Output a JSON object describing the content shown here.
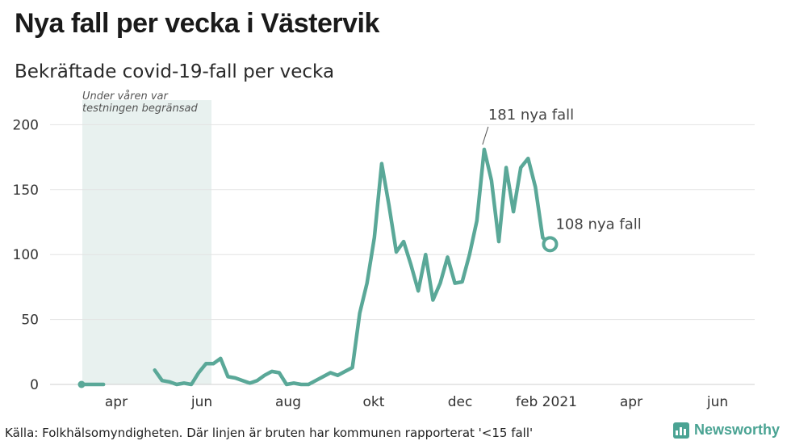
{
  "header": {
    "title": "Nya fall per vecka i Västervik",
    "subtitle": "Bekräftade covid-19-fall per vecka"
  },
  "footer": {
    "source": "Källa: Folkhälsomyndigheten. Där linjen är bruten har kommunen rapporterat '<15 fall'",
    "brand": "Newsworthy"
  },
  "colors": {
    "line": "#5aa898",
    "shade": "#e8f1ef",
    "grid": "#e3e3e3",
    "brand": "#4aa393"
  },
  "chart_data": {
    "type": "line",
    "title": "Nya fall per vecka i Västervik",
    "subtitle": "Bekräftade covid-19-fall per vecka",
    "ylim": [
      0,
      200
    ],
    "yticks": [
      0,
      50,
      100,
      150,
      200
    ],
    "grid": true,
    "x_tick_labels": [
      "apr",
      "jun",
      "aug",
      "okt",
      "dec",
      "feb 2021",
      "apr",
      "jun"
    ],
    "shaded_region": {
      "label_line1": "Under våren var",
      "label_line2": "testningen begränsad"
    },
    "series": [
      {
        "segments": [
          [
            0,
            0,
            0,
            0
          ],
          [
            11,
            3,
            2,
            0,
            1,
            0,
            9,
            16,
            16,
            20,
            6,
            5,
            3,
            1,
            3,
            7,
            10,
            9,
            0,
            1,
            0,
            0,
            3,
            6,
            9,
            7,
            10,
            13,
            55,
            78,
            113,
            170,
            138,
            102,
            110,
            92,
            72,
            100,
            65,
            78,
            98,
            78,
            79,
            100,
            126,
            181,
            157,
            110,
            167,
            133,
            167,
            174,
            152,
            113,
            108
          ]
        ]
      }
    ],
    "annotations": [
      {
        "text": "181 nya fall",
        "value": 181
      },
      {
        "text": "108 nya fall",
        "value": 108
      }
    ]
  }
}
